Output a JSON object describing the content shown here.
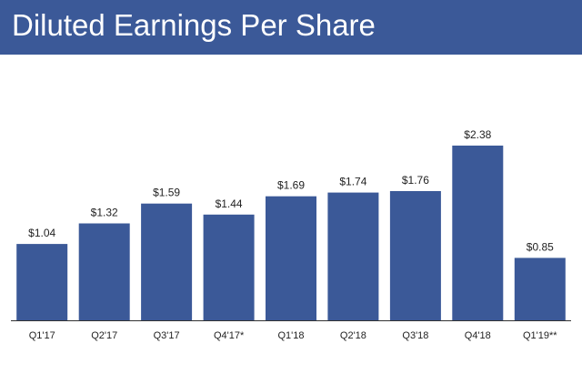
{
  "title": "Diluted Earnings Per Share",
  "colors": {
    "header_bg": "#3b5998",
    "bar": "#3b5998",
    "axis": "#333333"
  },
  "chart_data": {
    "type": "bar",
    "title": "Diluted Earnings Per Share",
    "xlabel": "",
    "ylabel": "",
    "categories": [
      "Q1'17",
      "Q2'17",
      "Q3'17",
      "Q4'17*",
      "Q1'18",
      "Q2'18",
      "Q3'18",
      "Q4'18",
      "Q1'19**"
    ],
    "values": [
      1.04,
      1.32,
      1.59,
      1.44,
      1.69,
      1.74,
      1.76,
      2.38,
      0.85
    ],
    "value_labels": [
      "$1.04",
      "$1.32",
      "$1.59",
      "$1.44",
      "$1.69",
      "$1.74",
      "$1.76",
      "$2.38",
      "$0.85"
    ],
    "ylim": [
      0,
      2.38
    ],
    "grid": false,
    "legend": "none"
  }
}
